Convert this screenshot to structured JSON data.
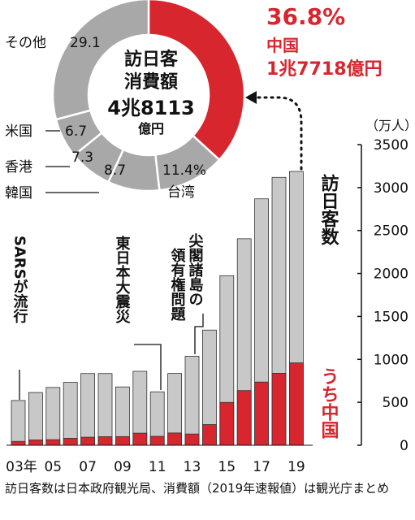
{
  "chart_data": [
    {
      "type": "pie",
      "title": "訪日客消費額",
      "total_label": {
        "big": "4兆8113",
        "unit": "億円"
      },
      "slices": [
        {
          "label": "中国",
          "value": 36.8,
          "display": "36.8%",
          "amount": "1兆7718億円",
          "color": "#d7262e"
        },
        {
          "label": "台湾",
          "value": 11.4,
          "display": "11.4%",
          "color": "#a8a8a8"
        },
        {
          "label": "韓国",
          "value": 8.7,
          "display": "8.7",
          "color": "#a8a8a8"
        },
        {
          "label": "香港",
          "value": 7.3,
          "display": "7.3",
          "color": "#a8a8a8"
        },
        {
          "label": "米国",
          "value": 6.7,
          "display": "6.7",
          "color": "#a8a8a8"
        },
        {
          "label": "その他",
          "value": 29.1,
          "display": "29.1",
          "color": "#a8a8a8"
        }
      ]
    },
    {
      "type": "bar",
      "unit": "（万人）",
      "categories": [
        "03",
        "04",
        "05",
        "06",
        "07",
        "08",
        "09",
        "10",
        "11",
        "12",
        "13",
        "14",
        "15",
        "16",
        "17",
        "18",
        "19"
      ],
      "x_tick_labels": [
        "03年",
        "05",
        "07",
        "09",
        "11",
        "13",
        "15",
        "17",
        "19"
      ],
      "series": [
        {
          "name": "訪日客数",
          "color": "#c8c8c8",
          "values": [
            521,
            614,
            673,
            733,
            835,
            835,
            679,
            861,
            622,
            836,
            1036,
            1341,
            1974,
            2404,
            2869,
            3119,
            3188
          ]
        },
        {
          "name": "うち中国",
          "color": "#d7262e",
          "values": [
            45,
            62,
            65,
            81,
            94,
            100,
            101,
            141,
            104,
            143,
            131,
            241,
            499,
            637,
            736,
            838,
            959
          ]
        }
      ],
      "ylim": [
        0,
        3500
      ],
      "y_ticks": [
        0,
        500,
        1000,
        1500,
        2000,
        2500,
        3000,
        3500
      ],
      "annotations": [
        {
          "text": "SARSが流行",
          "category": "03"
        },
        {
          "text": "東日本大震災",
          "category": "11"
        },
        {
          "text": "尖閣諸島の領有権問題",
          "category": "13"
        }
      ]
    }
  ],
  "note": "訪日客数は日本政府観光局、消費額（2019年速報値）は観光庁まとめ"
}
